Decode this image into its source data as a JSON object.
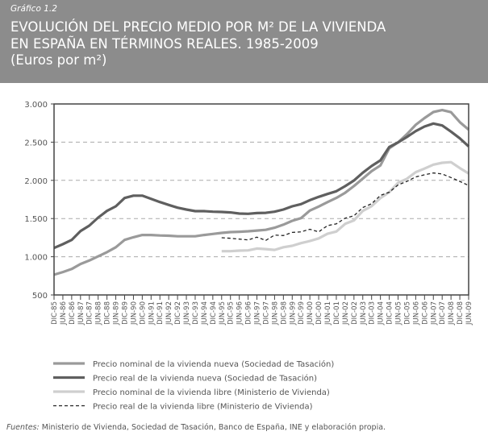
{
  "header": {
    "figure_number": "Gráfico 1.2",
    "title_line1": "EVOLUCIÓN DEL PRECIO MEDIO POR M² DE LA VIVIENDA",
    "title_line2": "EN ESPAÑA EN TÉRMINOS REALES. 1985-2009",
    "subtitle": "(Euros por m²)"
  },
  "source": {
    "label": "Fuentes:",
    "text": "Ministerio de Vivienda, Sociedad de Tasación, Banco de España, INE y elaboración propia."
  },
  "chart_data": {
    "type": "line",
    "title": "EVOLUCIÓN DEL PRECIO MEDIO POR M² DE LA VIVIENDA EN ESPAÑA EN TÉRMINOS REALES. 1985-2009",
    "ylabel": "(Euros por m²)",
    "ylim": [
      500,
      3000
    ],
    "yticks": [
      "500",
      "1.000",
      "1.500",
      "2.000",
      "2.500",
      "3.000"
    ],
    "ytick_values": [
      500,
      1000,
      1500,
      2000,
      2500,
      3000
    ],
    "grid": "horizontal dashed",
    "legend_position": "bottom",
    "categories": [
      "DIC-85",
      "JUN-86",
      "DIC-86",
      "JUN-87",
      "DIC-87",
      "JUN-88",
      "DIC-88",
      "JUN-89",
      "DIC-89",
      "JUN-90",
      "DIC-90",
      "JUN-91",
      "DIC-91",
      "JUN-92",
      "DIC-92",
      "JUN-93",
      "DIC-93",
      "JUN-94",
      "DIC-94",
      "JUN-95",
      "DIC-95",
      "JUN-96",
      "DIC-96",
      "JUN-97",
      "DIC-97",
      "JUN-98",
      "DIC-98",
      "JUN-99",
      "DIC-99",
      "JUN-00",
      "DIC-00",
      "JUN-01",
      "DIC-01",
      "JUN-02",
      "DIC-02",
      "JUN-03",
      "DIC-03",
      "JUN-04",
      "DIC-04",
      "JUN-05",
      "DIC-05",
      "JUN-06",
      "DIC-06",
      "JUN-07",
      "DIC-07",
      "JUN-08",
      "DIC-08",
      "JUN-09"
    ],
    "series": [
      {
        "name": "Precio nominal de la vivienda nueva (Sociedad de Tasación)",
        "color": "#9a9a9a",
        "style": "solid",
        "values": [
          765,
          800,
          840,
          905,
          950,
          1005,
          1060,
          1125,
          1220,
          1255,
          1285,
          1285,
          1278,
          1275,
          1268,
          1268,
          1268,
          1285,
          1298,
          1312,
          1323,
          1327,
          1333,
          1343,
          1352,
          1380,
          1420,
          1470,
          1505,
          1604,
          1657,
          1715,
          1770,
          1838,
          1925,
          2023,
          2120,
          2195,
          2420,
          2497,
          2603,
          2727,
          2815,
          2895,
          2920,
          2892,
          2762,
          2663
        ]
      },
      {
        "name": "Precio real de la vivienda nueva (Sociedad de Tasación)",
        "color": "#5f5f5f",
        "style": "solid",
        "values": [
          1115,
          1165,
          1220,
          1336,
          1407,
          1513,
          1600,
          1660,
          1769,
          1800,
          1800,
          1758,
          1716,
          1678,
          1642,
          1618,
          1597,
          1597,
          1590,
          1587,
          1580,
          1565,
          1562,
          1572,
          1575,
          1590,
          1618,
          1660,
          1689,
          1741,
          1784,
          1822,
          1858,
          1924,
          1998,
          2100,
          2188,
          2262,
          2437,
          2497,
          2568,
          2645,
          2705,
          2744,
          2718,
          2638,
          2550,
          2444
        ]
      },
      {
        "name": "Precio nominal de la vivienda libre (Ministerio de Vivienda)",
        "color": "#cfcfcf",
        "style": "solid",
        "values": [
          null,
          null,
          null,
          null,
          null,
          null,
          null,
          null,
          null,
          null,
          null,
          null,
          null,
          null,
          null,
          null,
          null,
          null,
          null,
          1073,
          1073,
          1080,
          1083,
          1108,
          1100,
          1090,
          1125,
          1143,
          1178,
          1206,
          1241,
          1301,
          1330,
          1430,
          1476,
          1600,
          1662,
          1768,
          1845,
          1968,
          2020,
          2108,
          2154,
          2206,
          2230,
          2238,
          2160,
          2090
        ]
      },
      {
        "name": "Precio real de la vivienda libre (Ministerio de Vivienda)",
        "color": "#222222",
        "style": "dashed",
        "values": [
          null,
          null,
          null,
          null,
          null,
          null,
          null,
          null,
          null,
          null,
          null,
          null,
          null,
          null,
          null,
          null,
          null,
          null,
          null,
          1249,
          1242,
          1231,
          1220,
          1256,
          1214,
          1284,
          1277,
          1319,
          1326,
          1360,
          1326,
          1407,
          1430,
          1505,
          1536,
          1645,
          1694,
          1803,
          1845,
          1940,
          1986,
          2045,
          2073,
          2097,
          2083,
          2037,
          1986,
          1933
        ]
      }
    ]
  }
}
